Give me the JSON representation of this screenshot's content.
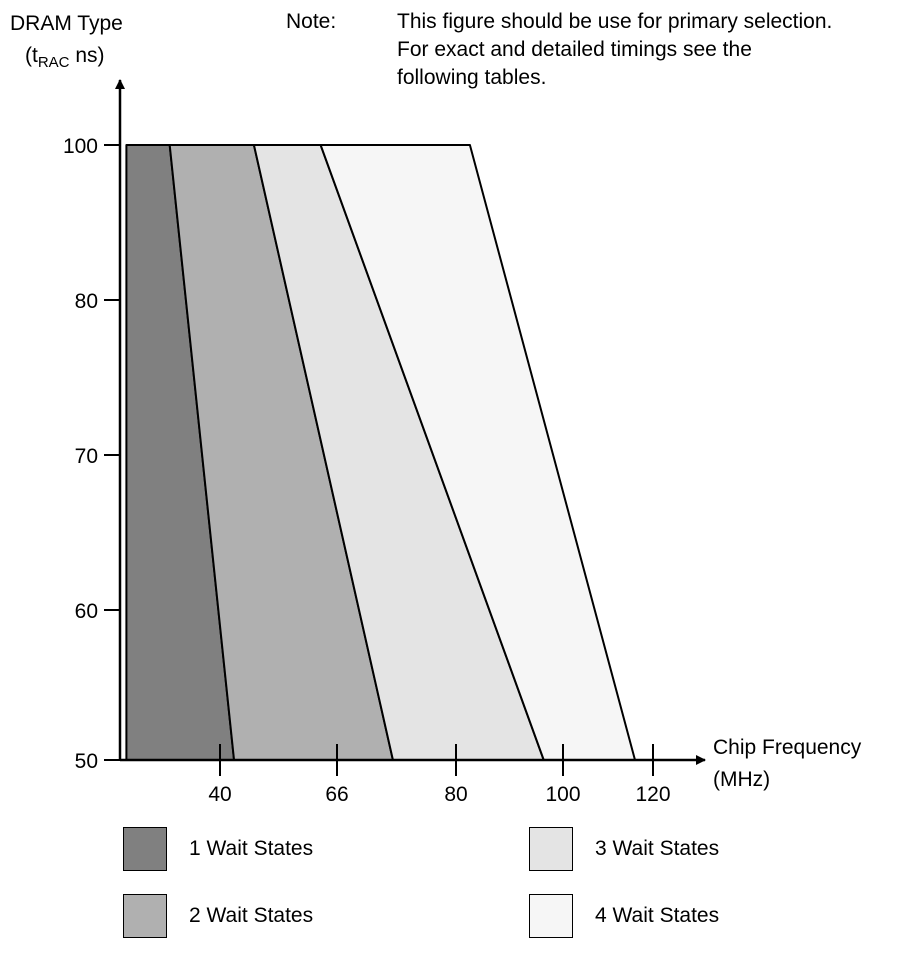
{
  "note": {
    "label": "Note:",
    "lines": [
      "This figure should be use for primary selection.",
      "For exact and detailed timings see the",
      "following tables."
    ]
  },
  "chart_data": {
    "type": "area",
    "title": "",
    "ylabel_line1": "DRAM Type",
    "ylabel_line2_main": "(t",
    "ylabel_line2_sub": "RAC",
    "ylabel_line2_tail": " ns)",
    "xlabel_line1": "Chip Frequency",
    "xlabel_line2": "(MHz)",
    "x_ticks": [
      "40",
      "66",
      "80",
      "100",
      "120"
    ],
    "y_ticks": [
      {
        "value": 100,
        "label": "100"
      },
      {
        "value": 80,
        "label": "80"
      },
      {
        "value": 70,
        "label": "70"
      },
      {
        "value": 60,
        "label": "60"
      },
      {
        "value": 50,
        "label": "50"
      }
    ],
    "x_note": "x axis is a categorical (non-linear) scale; boundary positions expressed in tick-index units (0 = 40, 1 = 66, 2 = 80, 3 = 100, 4 = 120)",
    "series": [
      {
        "name": "1 Wait States",
        "color": "#808080",
        "boundary_at_100": -0.43,
        "boundary_at_50": 0.12
      },
      {
        "name": "2 Wait States",
        "color": "#b0b0b0",
        "boundary_at_100": 0.29,
        "boundary_at_50": 1.47
      },
      {
        "name": "3 Wait States",
        "color": "#e4e4e4",
        "boundary_at_100": 0.86,
        "boundary_at_50": 2.82
      },
      {
        "name": "4 Wait States",
        "color": "#f6f6f6",
        "boundary_at_100": 2.13,
        "boundary_at_50": 3.8
      }
    ],
    "x_start_index": -0.8,
    "grid": false,
    "legend_placement": "bottom"
  }
}
